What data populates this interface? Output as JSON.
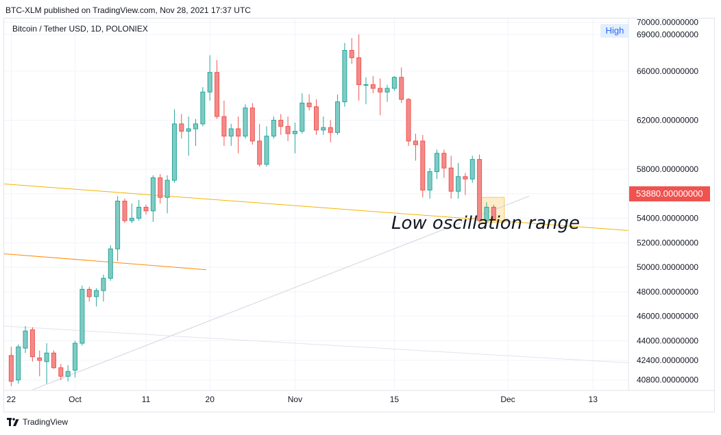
{
  "header": {
    "publisher_line": "BTC-XLM published on TradingView.com, Nov 28, 2021 17:37 UTC",
    "symbol_line": "Bitcoin / Tether USD, 1D, POLONIEX"
  },
  "annotation": {
    "text": "Low oscillation range"
  },
  "badges": {
    "high_label": "High",
    "last_price_label": "53880.00000000"
  },
  "footer": {
    "brand": "TradingView",
    "logo_icon": "tradingview-logo-icon"
  },
  "colors": {
    "up": "#26a69a",
    "up_fill": "#80cbc4",
    "down": "#ef5350",
    "down_fill": "#f28b89",
    "trend_yellow": "#f5b400",
    "trend_orange": "#ff8a00",
    "trend_gray": "#d1d4dc",
    "grid": "#f0f3fa",
    "highlight_box": "#fbe3a6",
    "last_price": "#ef5350"
  },
  "chart_data": {
    "type": "candlestick",
    "symbol": "BTCUSDT",
    "timeframe": "1D",
    "x_ticks": [
      {
        "label": "22",
        "day": 0
      },
      {
        "label": "Oct",
        "day": 9
      },
      {
        "label": "11",
        "day": 19
      },
      {
        "label": "20",
        "day": 28
      },
      {
        "label": "Nov",
        "day": 40
      },
      {
        "label": "15",
        "day": 54
      },
      {
        "label": "Dec",
        "day": 70
      },
      {
        "label": "13",
        "day": 82
      }
    ],
    "y_ticks": [
      40800,
      42400,
      44000,
      46000,
      48000,
      50000,
      52000,
      54000,
      56000,
      58000,
      62000,
      66000,
      69000,
      70000
    ],
    "y_tick_labels": [
      "40800.00000000",
      "42400.00000000",
      "44000.00000000",
      "46000.00000000",
      "48000.00000000",
      "50000.00000000",
      "52000.00000000",
      "54000.00000000",
      "56000.00000000",
      "58000.00000000",
      "62000.00000000",
      "66000.00000000",
      "69000.00000000",
      "70000.00000000"
    ],
    "ylim": [
      40000,
      70300
    ],
    "xlim": [
      -1,
      87
    ],
    "high_value": 69000,
    "last_price": 53880,
    "candles": [
      {
        "o": 42800,
        "h": 43500,
        "l": 40300,
        "c": 40700
      },
      {
        "o": 40800,
        "h": 43700,
        "l": 40500,
        "c": 43500
      },
      {
        "o": 43400,
        "h": 45200,
        "l": 43000,
        "c": 44800
      },
      {
        "o": 44900,
        "h": 45100,
        "l": 42300,
        "c": 42700
      },
      {
        "o": 42600,
        "h": 43200,
        "l": 41100,
        "c": 42400
      },
      {
        "o": 42300,
        "h": 43800,
        "l": 40500,
        "c": 43000
      },
      {
        "o": 43000,
        "h": 43200,
        "l": 41700,
        "c": 41800
      },
      {
        "o": 41800,
        "h": 42100,
        "l": 40800,
        "c": 41100
      },
      {
        "o": 41100,
        "h": 42000,
        "l": 40700,
        "c": 41500
      },
      {
        "o": 41600,
        "h": 44000,
        "l": 41000,
        "c": 43800
      },
      {
        "o": 43800,
        "h": 48500,
        "l": 43600,
        "c": 48200
      },
      {
        "o": 48200,
        "h": 48400,
        "l": 47200,
        "c": 47600
      },
      {
        "o": 47600,
        "h": 48300,
        "l": 46800,
        "c": 48100
      },
      {
        "o": 48100,
        "h": 49400,
        "l": 47200,
        "c": 49100
      },
      {
        "o": 49100,
        "h": 51800,
        "l": 48900,
        "c": 51500
      },
      {
        "o": 51500,
        "h": 55800,
        "l": 50500,
        "c": 55400
      },
      {
        "o": 55400,
        "h": 55600,
        "l": 53600,
        "c": 53800
      },
      {
        "o": 53800,
        "h": 55200,
        "l": 53600,
        "c": 54000
      },
      {
        "o": 54000,
        "h": 55500,
        "l": 53800,
        "c": 54900
      },
      {
        "o": 54900,
        "h": 55100,
        "l": 54300,
        "c": 54600
      },
      {
        "o": 54600,
        "h": 57500,
        "l": 53700,
        "c": 57300
      },
      {
        "o": 57300,
        "h": 57600,
        "l": 55200,
        "c": 55700
      },
      {
        "o": 55700,
        "h": 57500,
        "l": 54400,
        "c": 57100
      },
      {
        "o": 57100,
        "h": 62900,
        "l": 56900,
        "c": 61700
      },
      {
        "o": 61700,
        "h": 62500,
        "l": 60500,
        "c": 61100
      },
      {
        "o": 61100,
        "h": 62300,
        "l": 59100,
        "c": 61300
      },
      {
        "o": 61300,
        "h": 62100,
        "l": 59900,
        "c": 61700
      },
      {
        "o": 61700,
        "h": 64700,
        "l": 61500,
        "c": 64300
      },
      {
        "o": 64300,
        "h": 67300,
        "l": 63600,
        "c": 65900
      },
      {
        "o": 65900,
        "h": 66900,
        "l": 62100,
        "c": 62300
      },
      {
        "o": 62300,
        "h": 63600,
        "l": 59900,
        "c": 60700
      },
      {
        "o": 60700,
        "h": 61700,
        "l": 59900,
        "c": 61300
      },
      {
        "o": 61300,
        "h": 62300,
        "l": 59300,
        "c": 60700
      },
      {
        "o": 60700,
        "h": 63300,
        "l": 60500,
        "c": 63000
      },
      {
        "o": 63000,
        "h": 63400,
        "l": 60000,
        "c": 60300
      },
      {
        "o": 60300,
        "h": 61700,
        "l": 58200,
        "c": 58400
      },
      {
        "o": 58400,
        "h": 61500,
        "l": 58200,
        "c": 60700
      },
      {
        "o": 60700,
        "h": 62300,
        "l": 60500,
        "c": 62000
      },
      {
        "o": 62000,
        "h": 62500,
        "l": 60800,
        "c": 61500
      },
      {
        "o": 61500,
        "h": 62300,
        "l": 60300,
        "c": 60900
      },
      {
        "o": 60900,
        "h": 61800,
        "l": 59300,
        "c": 61100
      },
      {
        "o": 61100,
        "h": 64200,
        "l": 60900,
        "c": 63400
      },
      {
        "o": 63400,
        "h": 64100,
        "l": 62800,
        "c": 63100
      },
      {
        "o": 63100,
        "h": 63700,
        "l": 60800,
        "c": 61200
      },
      {
        "o": 61200,
        "h": 62300,
        "l": 60800,
        "c": 61400
      },
      {
        "o": 61400,
        "h": 62000,
        "l": 60200,
        "c": 61000
      },
      {
        "o": 61000,
        "h": 64100,
        "l": 60800,
        "c": 63500
      },
      {
        "o": 63500,
        "h": 68300,
        "l": 63100,
        "c": 67700
      },
      {
        "o": 67700,
        "h": 68700,
        "l": 66600,
        "c": 67100
      },
      {
        "o": 67100,
        "h": 69000,
        "l": 63600,
        "c": 64900
      },
      {
        "o": 64900,
        "h": 65500,
        "l": 63300,
        "c": 64900
      },
      {
        "o": 64900,
        "h": 65600,
        "l": 64200,
        "c": 64600
      },
      {
        "o": 64600,
        "h": 65400,
        "l": 62400,
        "c": 64300
      },
      {
        "o": 64300,
        "h": 64900,
        "l": 63500,
        "c": 64600
      },
      {
        "o": 64600,
        "h": 65600,
        "l": 64400,
        "c": 65500
      },
      {
        "o": 65500,
        "h": 66300,
        "l": 63400,
        "c": 63700
      },
      {
        "o": 63700,
        "h": 63800,
        "l": 59900,
        "c": 60300
      },
      {
        "o": 60300,
        "h": 60900,
        "l": 58700,
        "c": 60000
      },
      {
        "o": 60300,
        "h": 60800,
        "l": 55700,
        "c": 56300
      },
      {
        "o": 56300,
        "h": 58100,
        "l": 55600,
        "c": 57800
      },
      {
        "o": 57800,
        "h": 59600,
        "l": 57200,
        "c": 59300
      },
      {
        "o": 59300,
        "h": 59600,
        "l": 57300,
        "c": 58100
      },
      {
        "o": 58100,
        "h": 59100,
        "l": 55600,
        "c": 56200
      },
      {
        "o": 56200,
        "h": 58500,
        "l": 55600,
        "c": 57400
      },
      {
        "o": 57400,
        "h": 57700,
        "l": 55900,
        "c": 57200
      },
      {
        "o": 57200,
        "h": 59100,
        "l": 56900,
        "c": 58800
      },
      {
        "o": 58800,
        "h": 59200,
        "l": 53600,
        "c": 53800
      },
      {
        "o": 53800,
        "h": 55300,
        "l": 53700,
        "c": 54900
      },
      {
        "o": 54900,
        "h": 55100,
        "l": 53900,
        "c": 53880
      }
    ],
    "trendlines": [
      {
        "name": "yellow-trendline",
        "color": "#f5b400",
        "p1": {
          "day": -1,
          "price": 56800
        },
        "p2": {
          "day": 87,
          "price": 53000
        }
      },
      {
        "name": "orange-trendline",
        "color": "#ff8a00",
        "p1": {
          "day": -1,
          "price": 51100
        },
        "p2": {
          "day": 27.5,
          "price": 49800
        }
      },
      {
        "name": "gray-uptrend-line",
        "color": "#d1d4dc",
        "p1": {
          "day": 3,
          "price": 40000
        },
        "p2": {
          "day": 73,
          "price": 55800
        }
      },
      {
        "name": "gray-downtrend-line",
        "color": "#e0e3eb",
        "p1": {
          "day": -1,
          "price": 45200
        },
        "p2": {
          "day": 87,
          "price": 42200
        }
      }
    ],
    "highlight_box": {
      "day_start": 66.2,
      "day_end": 69.5,
      "price_low": 53650,
      "price_high": 55700
    }
  }
}
